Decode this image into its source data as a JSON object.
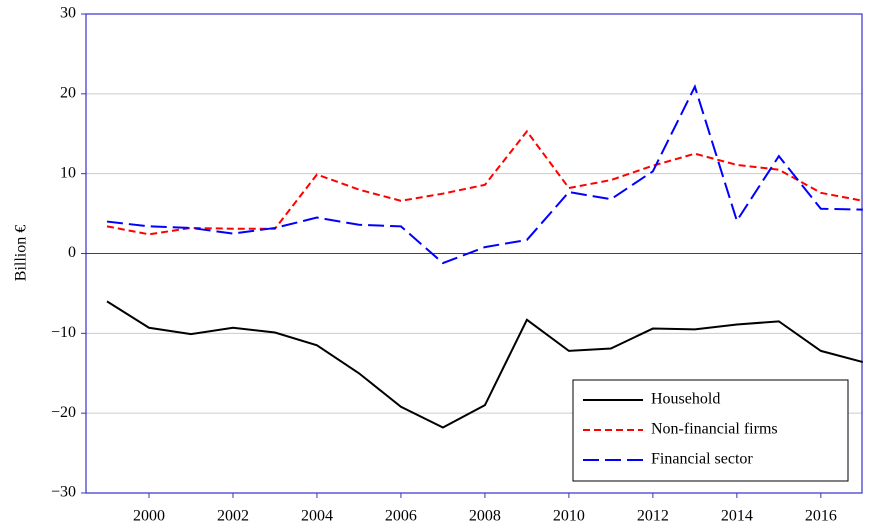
{
  "chart_data": {
    "type": "line",
    "y_label": "Billion €",
    "x": [
      1999,
      2000,
      2001,
      2002,
      2003,
      2004,
      2005,
      2006,
      2007,
      2008,
      2009,
      2010,
      2011,
      2012,
      2013,
      2014,
      2015,
      2016,
      2017
    ],
    "series": [
      {
        "name": "Household",
        "color": "#000000",
        "dash": "none",
        "values": [
          -6,
          -9.3,
          -10.1,
          -9.3,
          -9.9,
          -11.5,
          -15,
          -19.2,
          -21.8,
          -19,
          -8.3,
          -12.2,
          -11.9,
          -9.4,
          -9.5,
          -8.9,
          -8.5,
          -12.2,
          -13.6
        ]
      },
      {
        "name": "Non-financial firms",
        "color": "#ff0000",
        "dash": "7 4",
        "values": [
          3.4,
          2.4,
          3.2,
          3.1,
          3.1,
          9.9,
          8.0,
          6.6,
          7.5,
          8.6,
          15.3,
          8.2,
          9.2,
          11.0,
          12.5,
          11.1,
          10.5,
          7.6,
          6.6
        ]
      },
      {
        "name": "Financial sector",
        "color": "#0000ff",
        "dash": "16 6",
        "values": [
          4.0,
          3.4,
          3.2,
          2.5,
          3.2,
          4.5,
          3.6,
          3.4,
          -1.2,
          0.8,
          1.7,
          7.7,
          6.8,
          10.3,
          20.9,
          4.1,
          12.2,
          5.6,
          5.5
        ]
      }
    ],
    "xlim": [
      1998.5,
      2016.98
    ],
    "xticks": [
      2000,
      2002,
      2004,
      2006,
      2008,
      2010,
      2012,
      2014,
      2016
    ],
    "ylim": [
      -30,
      30
    ],
    "yticks": [
      {
        "value": -30,
        "label": "−30"
      },
      {
        "value": -20,
        "label": "−20"
      },
      {
        "value": -10,
        "label": "−10"
      },
      0,
      10,
      20,
      30
    ],
    "grid": true,
    "legend": "lower right"
  }
}
